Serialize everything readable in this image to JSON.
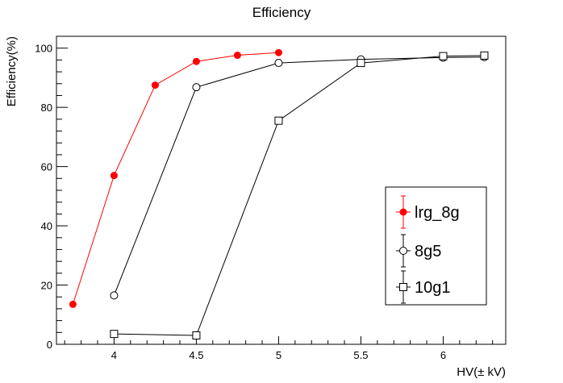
{
  "chart_data": {
    "type": "line",
    "title": "Efficiency",
    "xlabel": "HV(± kV)",
    "ylabel": "Efficiency(%)",
    "xlim": [
      3.65,
      6.38
    ],
    "ylim": [
      0,
      104
    ],
    "xticks": [
      4,
      4.5,
      5,
      5.5,
      6
    ],
    "xtick_labels": [
      "4",
      "4.5",
      "5",
      "5.5",
      "6"
    ],
    "yticks": [
      0,
      20,
      40,
      60,
      80,
      100
    ],
    "ytick_labels": [
      "0",
      "20",
      "40",
      "60",
      "80",
      "100"
    ],
    "grid": false,
    "legend_position": "bottom-right",
    "series": [
      {
        "name": "lrg_8g",
        "color": "#ff0000",
        "marker": "filled-circle",
        "x": [
          3.75,
          4.0,
          4.25,
          4.5,
          4.75,
          5.0
        ],
        "y": [
          13.5,
          57.0,
          87.5,
          95.5,
          97.6,
          98.5
        ]
      },
      {
        "name": "8g5",
        "color": "#000000",
        "marker": "open-circle",
        "x": [
          4.0,
          4.5,
          5.0,
          5.5,
          6.0,
          6.25
        ],
        "y": [
          16.5,
          86.8,
          95.0,
          96.2,
          96.8,
          97.0
        ]
      },
      {
        "name": "10g1",
        "color": "#000000",
        "marker": "open-square",
        "x": [
          4.0,
          4.5,
          5.0,
          5.5,
          6.0,
          6.25
        ],
        "y": [
          3.5,
          3.0,
          75.5,
          95.0,
          97.3,
          97.5
        ]
      }
    ]
  }
}
